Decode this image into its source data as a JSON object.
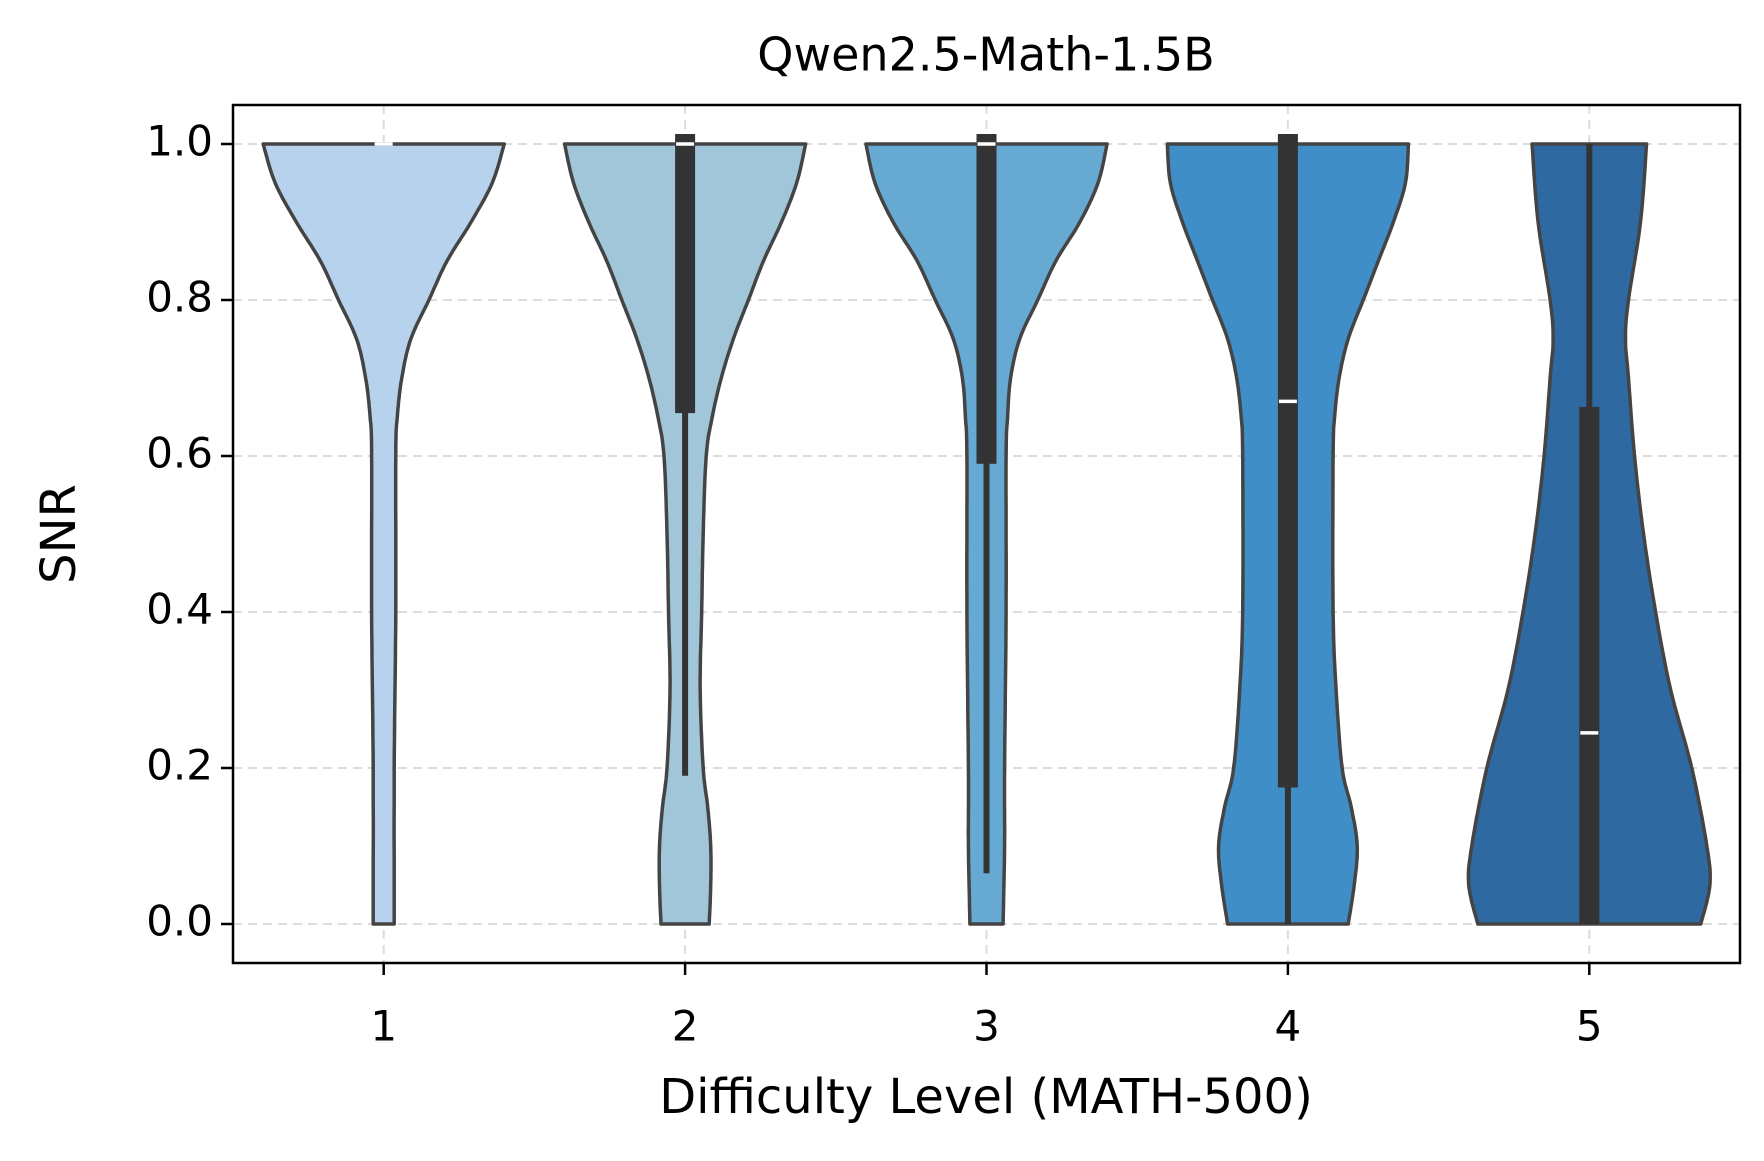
{
  "chart_data": {
    "type": "violin",
    "title": "Qwen2.5-Math-1.5B",
    "xlabel": "Difficulty Level (MATH-500)",
    "ylabel": "SNR",
    "categories": [
      "1",
      "2",
      "3",
      "4",
      "5"
    ],
    "ylim": [
      -0.05,
      1.05
    ],
    "yticks": [
      "0.0",
      "0.2",
      "0.4",
      "0.6",
      "0.8",
      "1.0"
    ],
    "ytick_values": [
      0,
      0.2,
      0.4,
      0.6,
      0.8,
      1.0
    ],
    "grid": true,
    "colors": [
      "#b6d2ed",
      "#a1c6da",
      "#66aad4",
      "#3f8ec8",
      "#2e69a2"
    ],
    "violins": [
      {
        "category": "1",
        "median": 1.0,
        "q1": 1.0,
        "q3": 1.0,
        "whisker_low": 1.0,
        "whisker_high": 1.0,
        "density": [
          [
            0,
            0.035
          ],
          [
            0.2,
            0.035
          ],
          [
            0.4,
            0.04
          ],
          [
            0.6,
            0.04
          ],
          [
            0.65,
            0.045
          ],
          [
            0.7,
            0.06
          ],
          [
            0.75,
            0.09
          ],
          [
            0.8,
            0.15
          ],
          [
            0.85,
            0.21
          ],
          [
            0.9,
            0.29
          ],
          [
            0.95,
            0.36
          ],
          [
            1.0,
            0.4
          ]
        ]
      },
      {
        "category": "2",
        "median": 1.0,
        "q1": 0.655,
        "q3": 1.0,
        "whisker_low": 0.19,
        "whisker_high": 1.0,
        "density": [
          [
            0,
            0.08
          ],
          [
            0.05,
            0.085
          ],
          [
            0.1,
            0.085
          ],
          [
            0.15,
            0.075
          ],
          [
            0.2,
            0.06
          ],
          [
            0.3,
            0.05
          ],
          [
            0.4,
            0.055
          ],
          [
            0.5,
            0.06
          ],
          [
            0.6,
            0.07
          ],
          [
            0.65,
            0.09
          ],
          [
            0.7,
            0.12
          ],
          [
            0.75,
            0.16
          ],
          [
            0.8,
            0.21
          ],
          [
            0.85,
            0.26
          ],
          [
            0.9,
            0.32
          ],
          [
            0.95,
            0.37
          ],
          [
            1.0,
            0.4
          ]
        ]
      },
      {
        "category": "3",
        "median": 1.0,
        "q1": 0.59,
        "q3": 1.0,
        "whisker_low": 0.065,
        "whisker_high": 1.0,
        "density": [
          [
            0,
            0.055
          ],
          [
            0.1,
            0.06
          ],
          [
            0.2,
            0.06
          ],
          [
            0.4,
            0.065
          ],
          [
            0.6,
            0.065
          ],
          [
            0.65,
            0.07
          ],
          [
            0.7,
            0.08
          ],
          [
            0.75,
            0.11
          ],
          [
            0.8,
            0.17
          ],
          [
            0.85,
            0.23
          ],
          [
            0.9,
            0.31
          ],
          [
            0.95,
            0.37
          ],
          [
            1.0,
            0.4
          ]
        ]
      },
      {
        "category": "4",
        "median": 0.67,
        "q1": 0.175,
        "q3": 1.0,
        "whisker_low": 0.0,
        "whisker_high": 1.0,
        "density": [
          [
            0,
            0.2
          ],
          [
            0.05,
            0.22
          ],
          [
            0.1,
            0.23
          ],
          [
            0.15,
            0.21
          ],
          [
            0.2,
            0.18
          ],
          [
            0.3,
            0.16
          ],
          [
            0.4,
            0.15
          ],
          [
            0.6,
            0.15
          ],
          [
            0.65,
            0.155
          ],
          [
            0.7,
            0.17
          ],
          [
            0.75,
            0.2
          ],
          [
            0.8,
            0.25
          ],
          [
            0.85,
            0.3
          ],
          [
            0.9,
            0.35
          ],
          [
            0.95,
            0.39
          ],
          [
            1.0,
            0.4
          ]
        ]
      },
      {
        "category": "5",
        "median": 0.245,
        "q1": 0.0,
        "q3": 0.65,
        "whisker_low": 0.0,
        "whisker_high": 1.0,
        "density": [
          [
            0,
            0.37
          ],
          [
            0.05,
            0.4
          ],
          [
            0.1,
            0.39
          ],
          [
            0.2,
            0.34
          ],
          [
            0.3,
            0.27
          ],
          [
            0.4,
            0.22
          ],
          [
            0.5,
            0.18
          ],
          [
            0.6,
            0.15
          ],
          [
            0.7,
            0.13
          ],
          [
            0.75,
            0.12
          ],
          [
            0.8,
            0.13
          ],
          [
            0.9,
            0.17
          ],
          [
            1.0,
            0.19
          ]
        ]
      }
    ]
  }
}
